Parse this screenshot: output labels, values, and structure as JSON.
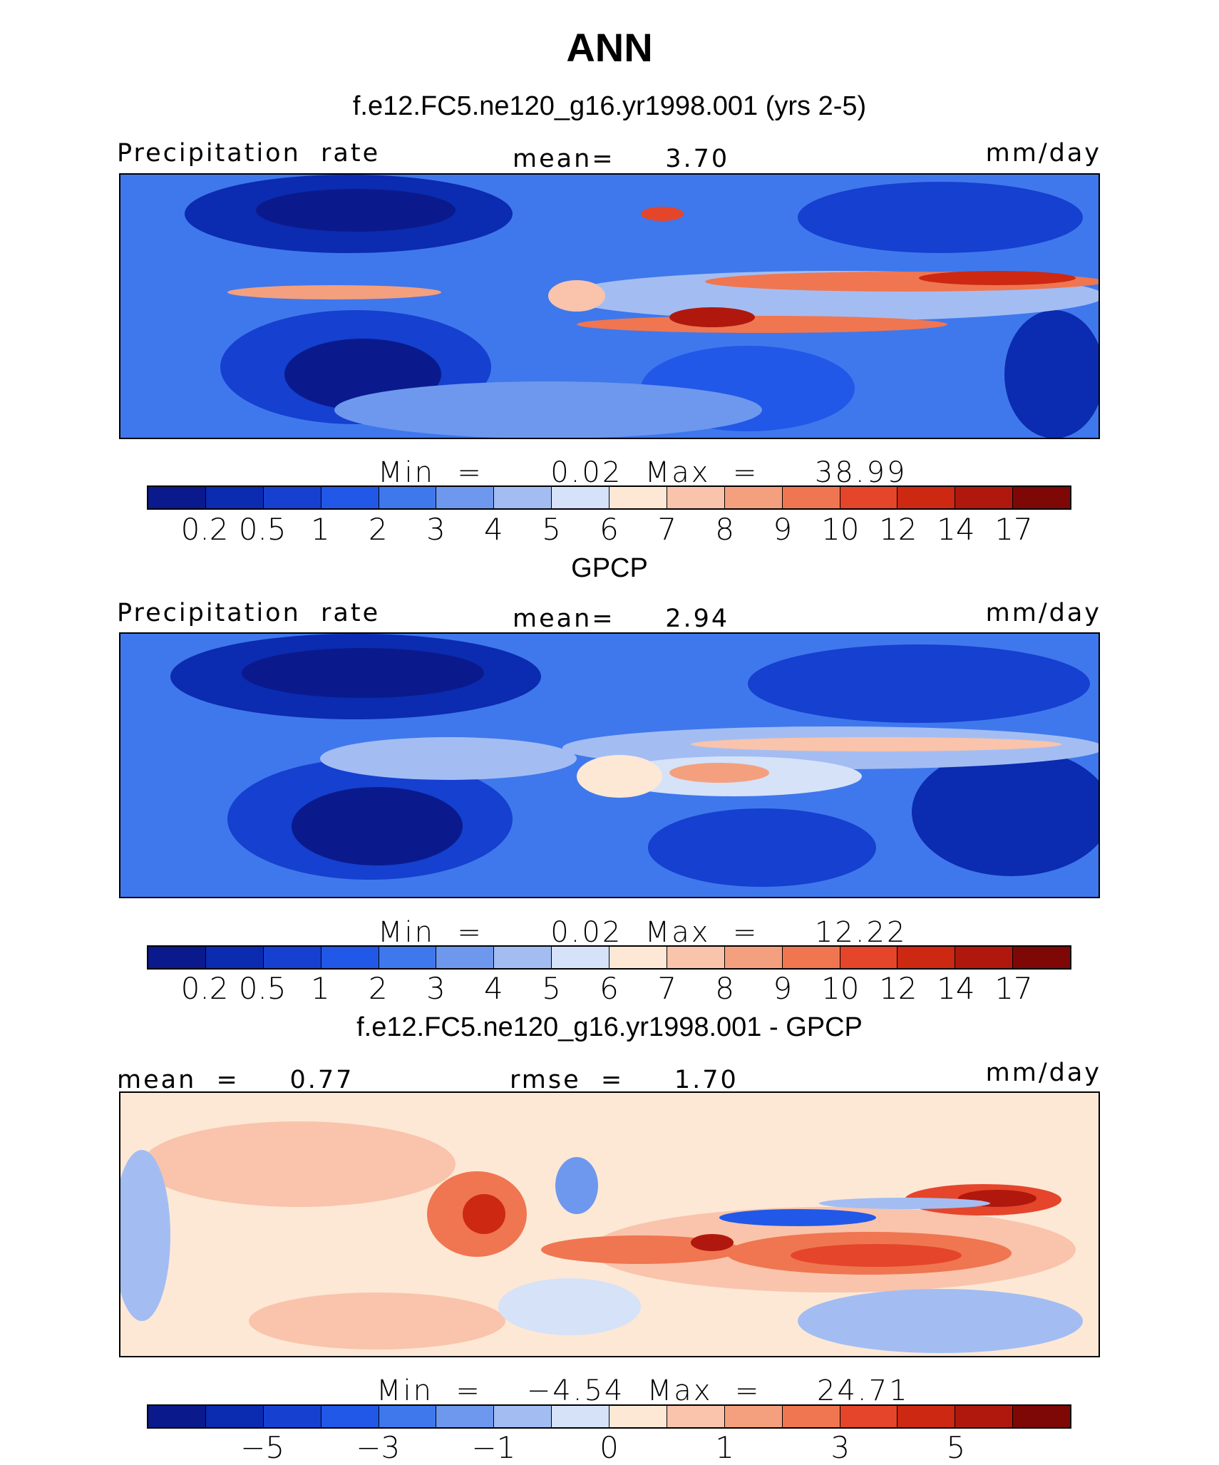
{
  "title": "ANN",
  "panels": [
    {
      "subtitle": "f.e12.FC5.ne120_g16.yr1998.001 (yrs 2-5)",
      "left_label": "Precipitation  rate",
      "center_label": "mean=     3.70",
      "right_label": "mm/day",
      "minmax": "Min  =      0.02  Max  =     38.99",
      "ticks": [
        "0.2",
        "0.5",
        "1",
        "2",
        "3",
        "4",
        "5",
        "6",
        "7",
        "8",
        "9",
        "10",
        "12",
        "14",
        "17"
      ]
    },
    {
      "subtitle": "GPCP",
      "left_label": "Precipitation  rate",
      "center_label": "mean=     2.94",
      "right_label": "mm/day",
      "minmax": "Min  =      0.02  Max  =     12.22",
      "ticks": [
        "0.2",
        "0.5",
        "1",
        "2",
        "3",
        "4",
        "5",
        "6",
        "7",
        "8",
        "9",
        "10",
        "12",
        "14",
        "17"
      ]
    },
    {
      "subtitle": "f.e12.FC5.ne120_g16.yr1998.001 - GPCP",
      "left_label": "mean  =     0.77",
      "center_label": "rmse  =     1.70",
      "right_label": "mm/day",
      "minmax": "Min  =    −4.54  Max  =     24.71",
      "ticks": [
        "−5",
        "−3",
        "−1",
        "0",
        "1",
        "3",
        "5"
      ]
    }
  ],
  "colorbar_colors": [
    "#0a1a8c",
    "#0b2bb0",
    "#1540d0",
    "#2258e8",
    "#3f78ec",
    "#6d98ee",
    "#a3bdf3",
    "#d5e2f8",
    "#fde8d6",
    "#f9c4ab",
    "#f4a07e",
    "#ef7650",
    "#e5452a",
    "#cd2812",
    "#b0180e",
    "#7e0805"
  ]
}
